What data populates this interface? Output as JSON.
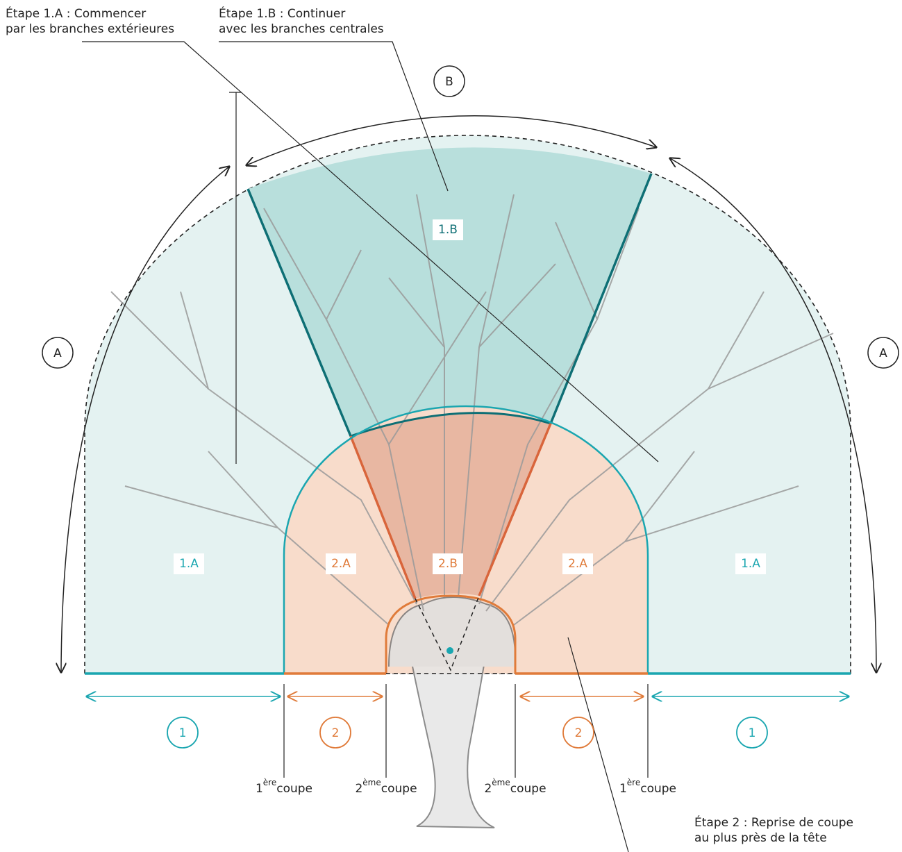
{
  "annotations": [
    {
      "lines": [
        "Étape 1.A : Commencer",
        "par les branches extérieures"
      ]
    },
    {
      "lines": [
        "Étape 1.B : Continuer",
        "avec les branches centrales"
      ]
    },
    {
      "lines": [
        "Étape 2 : Reprise de coupe",
        "au plus près de la tête"
      ]
    }
  ],
  "markers": [
    "B",
    "A",
    "A"
  ],
  "zones": [
    "1.B",
    "1.A",
    "2.A",
    "2.B",
    "2.A",
    "1.A"
  ],
  "steps": [
    "1",
    "2",
    "2",
    "1"
  ],
  "cuts": [
    {
      "number": "1",
      "sup": "ère",
      "word": "coupe"
    },
    {
      "number": "2",
      "sup": "ème",
      "word": "coupe"
    },
    {
      "number": "2",
      "sup": "ème",
      "word": "coupe"
    },
    {
      "number": "1",
      "sup": "ère",
      "word": "coupe"
    }
  ]
}
